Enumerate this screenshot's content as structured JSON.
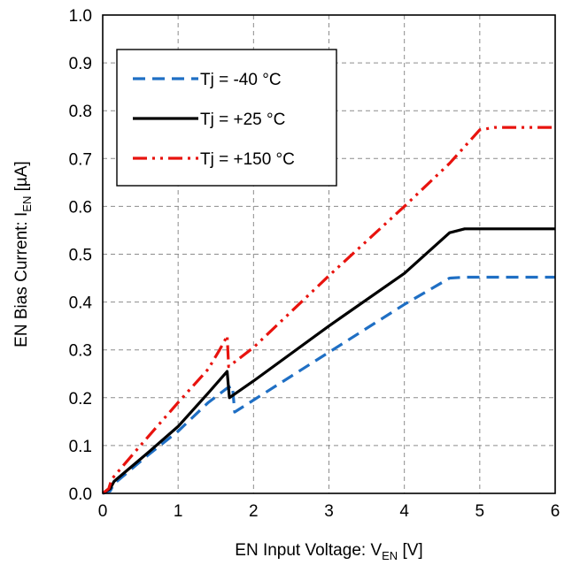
{
  "chart_data": {
    "type": "line",
    "title": "",
    "xlabel": {
      "main": "EN Input Voltage: V",
      "sub": "EN",
      "unit": " [V]"
    },
    "ylabel": {
      "main": "EN Bias Current: I",
      "sub": "EN",
      "unit": " [µA]"
    },
    "xlim": [
      0,
      6
    ],
    "ylim": [
      0,
      1.0
    ],
    "xticks": [
      0,
      1,
      2,
      3,
      4,
      5,
      6
    ],
    "xtick_labels": [
      "0",
      "1",
      "2",
      "3",
      "4",
      "5",
      "6"
    ],
    "yticks": [
      0,
      0.1,
      0.2,
      0.3,
      0.4,
      0.5,
      0.6,
      0.7,
      0.8,
      0.9,
      1.0
    ],
    "ytick_labels": [
      "0.0",
      "0.1",
      "0.2",
      "0.3",
      "0.4",
      "0.5",
      "0.6",
      "0.7",
      "0.8",
      "0.9",
      "1.0"
    ],
    "grid": true,
    "legend_position": "top-left",
    "series": [
      {
        "name": "Tj = -40 °C",
        "color": "#1f6fc4",
        "style": "dashed",
        "points": [
          [
            0,
            0
          ],
          [
            0.1,
            0.005
          ],
          [
            0.15,
            0.02
          ],
          [
            0.6,
            0.08
          ],
          [
            1.0,
            0.13
          ],
          [
            1.4,
            0.19
          ],
          [
            1.65,
            0.22
          ],
          [
            1.72,
            0.225
          ],
          [
            1.75,
            0.17
          ],
          [
            2.0,
            0.195
          ],
          [
            3.0,
            0.295
          ],
          [
            4.0,
            0.395
          ],
          [
            4.6,
            0.45
          ],
          [
            4.8,
            0.452
          ],
          [
            6.0,
            0.452
          ]
        ]
      },
      {
        "name": "Tj = +25 °C",
        "color": "#000000",
        "style": "solid",
        "points": [
          [
            0,
            0
          ],
          [
            0.1,
            0.01
          ],
          [
            0.15,
            0.025
          ],
          [
            0.6,
            0.085
          ],
          [
            1.0,
            0.14
          ],
          [
            1.4,
            0.21
          ],
          [
            1.65,
            0.255
          ],
          [
            1.68,
            0.2
          ],
          [
            2.0,
            0.235
          ],
          [
            3.0,
            0.35
          ],
          [
            4.0,
            0.46
          ],
          [
            4.6,
            0.545
          ],
          [
            4.8,
            0.553
          ],
          [
            6.0,
            0.553
          ]
        ]
      },
      {
        "name": "Tj = +150 °C",
        "color": "#e8130e",
        "style": "dashdotdot",
        "points": [
          [
            0,
            0
          ],
          [
            0.08,
            0.01
          ],
          [
            0.12,
            0.03
          ],
          [
            0.5,
            0.1
          ],
          [
            1.0,
            0.19
          ],
          [
            1.4,
            0.26
          ],
          [
            1.55,
            0.3
          ],
          [
            1.62,
            0.32
          ],
          [
            1.65,
            0.33
          ],
          [
            1.67,
            0.265
          ],
          [
            2.0,
            0.305
          ],
          [
            3.0,
            0.455
          ],
          [
            4.0,
            0.6
          ],
          [
            4.6,
            0.69
          ],
          [
            5.0,
            0.76
          ],
          [
            5.2,
            0.765
          ],
          [
            6.0,
            0.765
          ]
        ]
      }
    ]
  }
}
